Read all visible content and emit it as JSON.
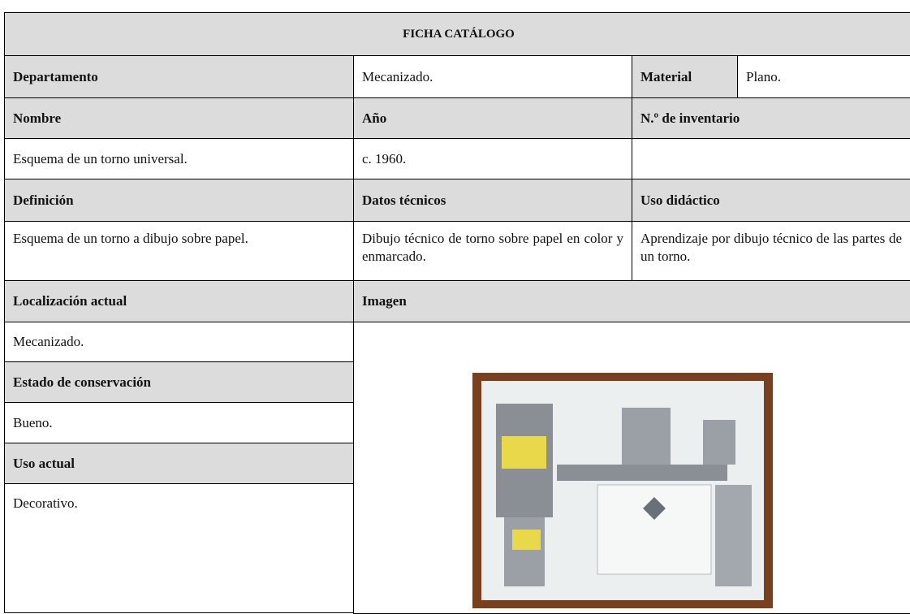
{
  "title": "FICHA CATÁLOGO",
  "departamento": {
    "label": "Departamento",
    "value": "Mecanizado."
  },
  "material": {
    "label": "Material",
    "value": "Plano."
  },
  "nombre": {
    "label": "Nombre",
    "value": "Esquema de un torno universal."
  },
  "ano": {
    "label": "Año",
    "value": "c. 1960."
  },
  "inventario": {
    "label": "N.º de inventario"
  },
  "definicion": {
    "label": "Definición",
    "value": "Esquema de un torno a dibujo sobre papel."
  },
  "datos_tecnicos": {
    "label": "Datos técnicos",
    "value": "Dibujo técnico de torno sobre papel en color y enmarcado."
  },
  "uso_didactico": {
    "label": "Uso didáctico",
    "value": "Aprendizaje por dibujo técnico de las partes de un torno."
  },
  "localizacion": {
    "label": "Localización actual",
    "value": "Mecanizado."
  },
  "imagen": {
    "label": "Imagen"
  },
  "estado": {
    "label": "Estado de conservación",
    "value": "Bueno."
  },
  "uso_actual": {
    "label": "Uso actual",
    "value": "Decorativo."
  }
}
